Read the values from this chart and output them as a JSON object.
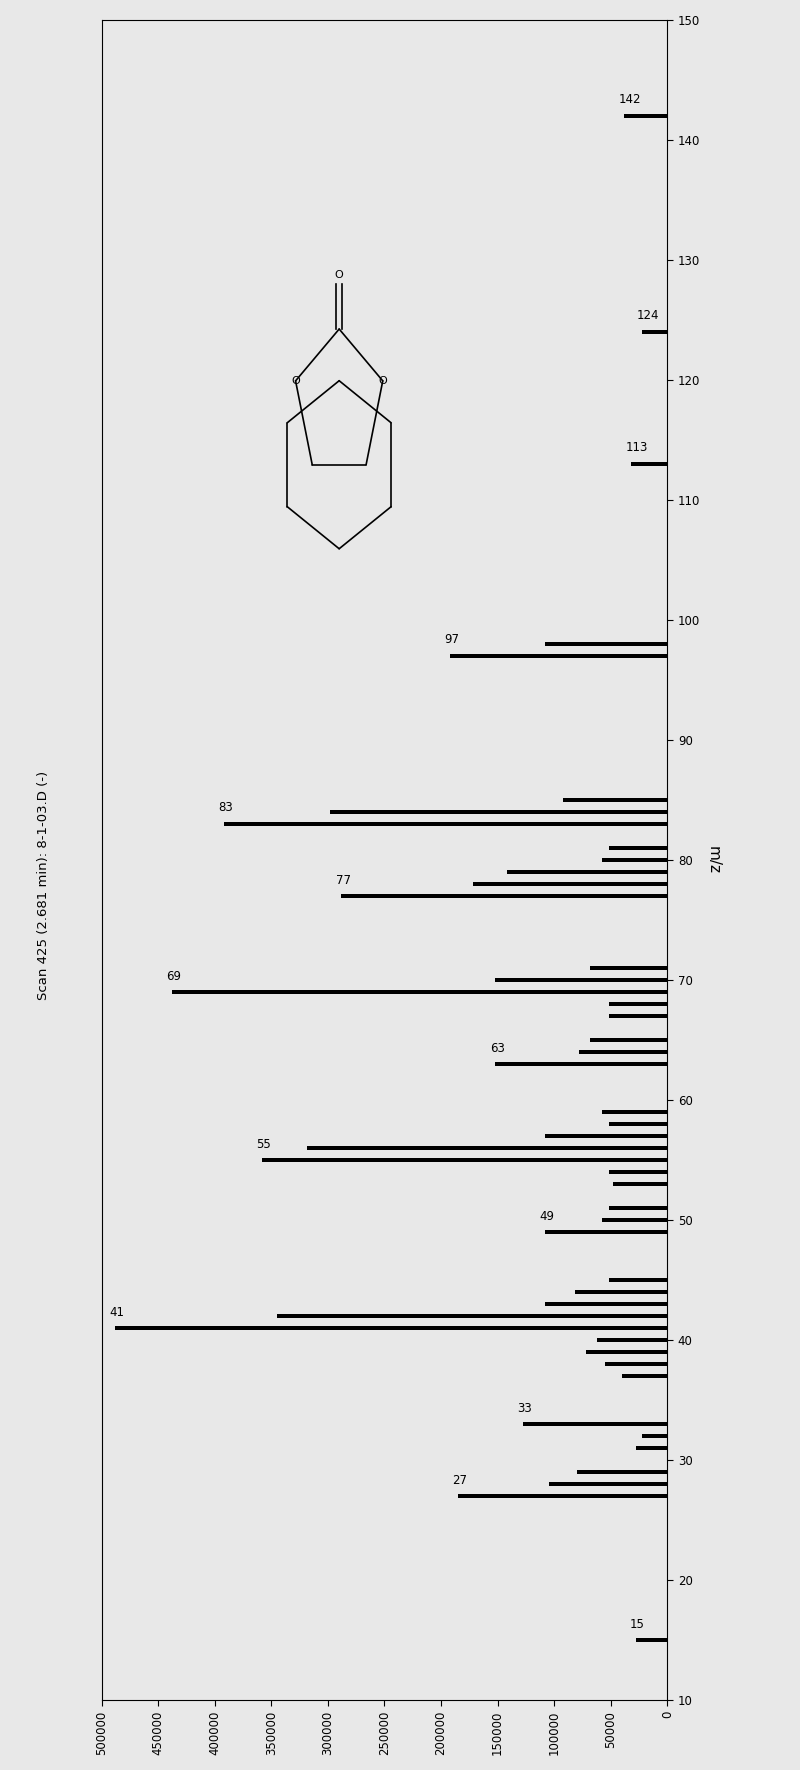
{
  "title": "Scan 425 (2.681 min): 8-1-03.D (-)",
  "ylabel": "m/z",
  "xlim_left": 500000,
  "xlim_right": 0,
  "ylim": [
    10,
    150
  ],
  "xticks": [
    500000,
    450000,
    400000,
    350000,
    300000,
    250000,
    200000,
    150000,
    100000,
    50000,
    0
  ],
  "xticklabels": [
    "500000",
    "450000",
    "400000",
    "350000",
    "300000",
    "250000",
    "200000",
    "150000",
    "100000",
    "50000",
    "0"
  ],
  "yticks": [
    10,
    20,
    30,
    40,
    50,
    60,
    70,
    80,
    90,
    100,
    110,
    120,
    130,
    140,
    150
  ],
  "background_color": "#e8e8e8",
  "bar_color": "#000000",
  "bar_height": 0.35,
  "peaks": [
    {
      "mz": 15,
      "intensity": 28000,
      "label": "15"
    },
    {
      "mz": 27,
      "intensity": 185000,
      "label": "27"
    },
    {
      "mz": 28,
      "intensity": 105000,
      "label": null
    },
    {
      "mz": 29,
      "intensity": 80000,
      "label": null
    },
    {
      "mz": 31,
      "intensity": 28000,
      "label": null
    },
    {
      "mz": 32,
      "intensity": 22000,
      "label": null
    },
    {
      "mz": 33,
      "intensity": 128000,
      "label": "33"
    },
    {
      "mz": 37,
      "intensity": 40000,
      "label": null
    },
    {
      "mz": 38,
      "intensity": 55000,
      "label": null
    },
    {
      "mz": 39,
      "intensity": 72000,
      "label": null
    },
    {
      "mz": 40,
      "intensity": 62000,
      "label": null
    },
    {
      "mz": 41,
      "intensity": 488000,
      "label": "41"
    },
    {
      "mz": 42,
      "intensity": 345000,
      "label": null
    },
    {
      "mz": 43,
      "intensity": 108000,
      "label": null
    },
    {
      "mz": 44,
      "intensity": 82000,
      "label": null
    },
    {
      "mz": 45,
      "intensity": 52000,
      "label": null
    },
    {
      "mz": 49,
      "intensity": 108000,
      "label": "49"
    },
    {
      "mz": 50,
      "intensity": 58000,
      "label": null
    },
    {
      "mz": 51,
      "intensity": 52000,
      "label": null
    },
    {
      "mz": 53,
      "intensity": 48000,
      "label": null
    },
    {
      "mz": 54,
      "intensity": 52000,
      "label": null
    },
    {
      "mz": 55,
      "intensity": 358000,
      "label": "55"
    },
    {
      "mz": 56,
      "intensity": 318000,
      "label": null
    },
    {
      "mz": 57,
      "intensity": 108000,
      "label": null
    },
    {
      "mz": 58,
      "intensity": 52000,
      "label": null
    },
    {
      "mz": 59,
      "intensity": 58000,
      "label": null
    },
    {
      "mz": 63,
      "intensity": 152000,
      "label": "63"
    },
    {
      "mz": 64,
      "intensity": 78000,
      "label": null
    },
    {
      "mz": 65,
      "intensity": 68000,
      "label": null
    },
    {
      "mz": 67,
      "intensity": 52000,
      "label": null
    },
    {
      "mz": 68,
      "intensity": 52000,
      "label": null
    },
    {
      "mz": 69,
      "intensity": 438000,
      "label": "69"
    },
    {
      "mz": 70,
      "intensity": 152000,
      "label": null
    },
    {
      "mz": 71,
      "intensity": 68000,
      "label": null
    },
    {
      "mz": 77,
      "intensity": 288000,
      "label": "77"
    },
    {
      "mz": 78,
      "intensity": 172000,
      "label": null
    },
    {
      "mz": 79,
      "intensity": 142000,
      "label": null
    },
    {
      "mz": 80,
      "intensity": 58000,
      "label": null
    },
    {
      "mz": 81,
      "intensity": 52000,
      "label": null
    },
    {
      "mz": 83,
      "intensity": 392000,
      "label": "83"
    },
    {
      "mz": 84,
      "intensity": 298000,
      "label": null
    },
    {
      "mz": 85,
      "intensity": 92000,
      "label": null
    },
    {
      "mz": 97,
      "intensity": 192000,
      "label": "97"
    },
    {
      "mz": 98,
      "intensity": 108000,
      "label": null
    },
    {
      "mz": 113,
      "intensity": 32000,
      "label": "113"
    },
    {
      "mz": 124,
      "intensity": 22000,
      "label": "124"
    },
    {
      "mz": 142,
      "intensity": 38000,
      "label": "142"
    }
  ]
}
